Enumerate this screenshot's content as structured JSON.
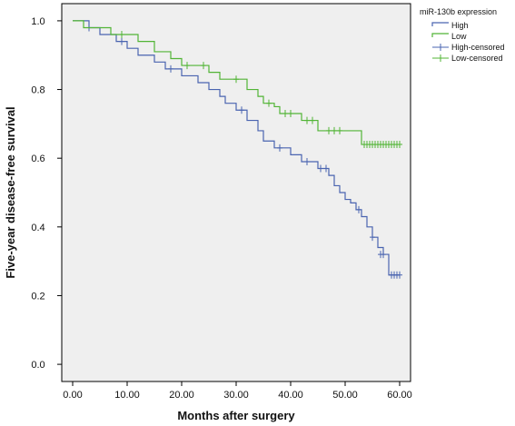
{
  "chart_data": {
    "type": "line",
    "title": "",
    "xlabel": "Months after surgery",
    "ylabel": "Five-year  disease-free survival",
    "xlim": [
      -2,
      62
    ],
    "ylim": [
      -0.05,
      1.05
    ],
    "x_ticks": [
      0,
      10,
      20,
      30,
      40,
      50,
      60
    ],
    "x_tick_labels": [
      "0.00",
      "10.00",
      "20.00",
      "30.00",
      "40.00",
      "50.00",
      "60.00"
    ],
    "y_ticks": [
      0.0,
      0.2,
      0.4,
      0.6,
      0.8,
      1.0
    ],
    "y_tick_labels": [
      "0.0",
      "0.2",
      "0.4",
      "0.6",
      "0.8",
      "1.0"
    ],
    "grid": false,
    "background": "#efefef",
    "legend": {
      "title": "miR-130b expression",
      "placement": "top-right outside",
      "entries": [
        {
          "label": "High",
          "kind": "step",
          "color": "#4a64b0"
        },
        {
          "label": "Low",
          "kind": "step",
          "color": "#52b436"
        },
        {
          "label": "High-censored",
          "kind": "cross",
          "color": "#4a64b0"
        },
        {
          "label": "Low-censored",
          "kind": "cross",
          "color": "#52b436"
        }
      ]
    },
    "series": [
      {
        "name": "High",
        "color": "#4a64b0",
        "steps": [
          [
            0,
            1.0
          ],
          [
            3,
            0.98
          ],
          [
            5,
            0.96
          ],
          [
            8,
            0.94
          ],
          [
            10,
            0.92
          ],
          [
            12,
            0.9
          ],
          [
            15,
            0.88
          ],
          [
            17,
            0.86
          ],
          [
            20,
            0.84
          ],
          [
            23,
            0.82
          ],
          [
            25,
            0.8
          ],
          [
            27,
            0.78
          ],
          [
            28,
            0.76
          ],
          [
            30,
            0.74
          ],
          [
            32,
            0.71
          ],
          [
            34,
            0.68
          ],
          [
            35,
            0.65
          ],
          [
            37,
            0.63
          ],
          [
            40,
            0.61
          ],
          [
            42,
            0.59
          ],
          [
            45,
            0.57
          ],
          [
            47,
            0.55
          ],
          [
            48,
            0.52
          ],
          [
            49,
            0.5
          ],
          [
            50,
            0.48
          ],
          [
            51,
            0.47
          ],
          [
            52,
            0.45
          ],
          [
            53,
            0.43
          ],
          [
            54,
            0.4
          ],
          [
            55,
            0.37
          ],
          [
            56,
            0.34
          ],
          [
            57,
            0.32
          ],
          [
            58,
            0.26
          ]
        ],
        "end_x": 60,
        "censored": [
          [
            3,
            0.98
          ],
          [
            9,
            0.94
          ],
          [
            18,
            0.86
          ],
          [
            31,
            0.74
          ],
          [
            38,
            0.63
          ],
          [
            43,
            0.59
          ],
          [
            45.5,
            0.57
          ],
          [
            46.5,
            0.57
          ],
          [
            52.5,
            0.45
          ],
          [
            55,
            0.37
          ],
          [
            56.5,
            0.32
          ],
          [
            57,
            0.32
          ],
          [
            58.5,
            0.26
          ],
          [
            59,
            0.26
          ],
          [
            59.5,
            0.26
          ],
          [
            60,
            0.26
          ]
        ]
      },
      {
        "name": "Low",
        "color": "#52b436",
        "steps": [
          [
            0,
            1.0
          ],
          [
            2,
            0.98
          ],
          [
            7,
            0.96
          ],
          [
            12,
            0.94
          ],
          [
            15,
            0.91
          ],
          [
            18,
            0.89
          ],
          [
            20,
            0.87
          ],
          [
            25,
            0.85
          ],
          [
            27,
            0.83
          ],
          [
            32,
            0.8
          ],
          [
            34,
            0.78
          ],
          [
            35,
            0.76
          ],
          [
            37,
            0.75
          ],
          [
            38,
            0.73
          ],
          [
            42,
            0.71
          ],
          [
            45,
            0.68
          ],
          [
            53,
            0.64
          ]
        ],
        "end_x": 60,
        "censored": [
          [
            9,
            0.96
          ],
          [
            21,
            0.87
          ],
          [
            24,
            0.87
          ],
          [
            30,
            0.83
          ],
          [
            36,
            0.76
          ],
          [
            39,
            0.73
          ],
          [
            40,
            0.73
          ],
          [
            43,
            0.71
          ],
          [
            44,
            0.71
          ],
          [
            47,
            0.68
          ],
          [
            48,
            0.68
          ],
          [
            49,
            0.68
          ],
          [
            53.5,
            0.64
          ],
          [
            54,
            0.64
          ],
          [
            54.5,
            0.64
          ],
          [
            55,
            0.64
          ],
          [
            55.5,
            0.64
          ],
          [
            56,
            0.64
          ],
          [
            56.5,
            0.64
          ],
          [
            57,
            0.64
          ],
          [
            57.5,
            0.64
          ],
          [
            58,
            0.64
          ],
          [
            58.5,
            0.64
          ],
          [
            59,
            0.64
          ],
          [
            59.5,
            0.64
          ],
          [
            60,
            0.64
          ]
        ]
      }
    ]
  }
}
